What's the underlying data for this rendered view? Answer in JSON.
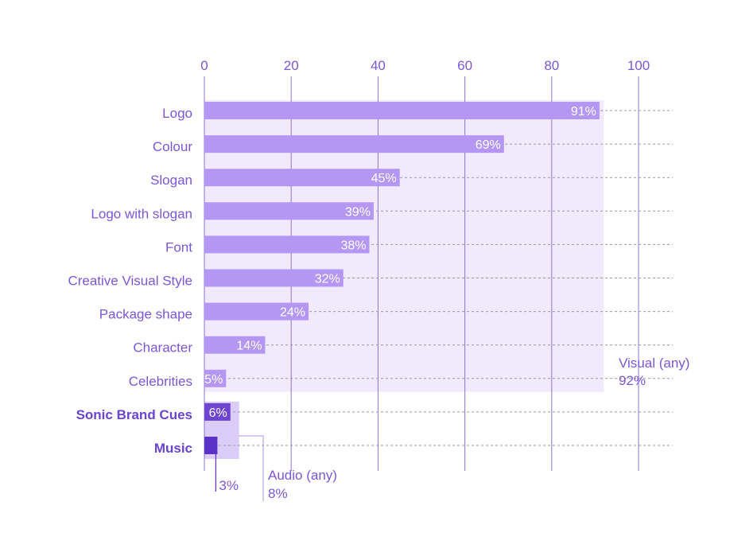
{
  "chart_data": {
    "type": "bar",
    "orientation": "horizontal",
    "title": "",
    "xlabel": "",
    "ylabel": "",
    "xlim": [
      0,
      100
    ],
    "x_ticks": [
      "0",
      "20",
      "40",
      "60",
      "80",
      "100"
    ],
    "categories": [
      "Logo",
      "Colour",
      "Slogan",
      "Logo with slogan",
      "Font",
      "Creative Visual Style",
      "Package shape",
      "Character",
      "Celebrities",
      "Sonic Brand Cues",
      "Music"
    ],
    "values": [
      91,
      69,
      45,
      39,
      38,
      32,
      24,
      14,
      5,
      6,
      3
    ],
    "value_labels": [
      "91%",
      "69%",
      "45%",
      "39%",
      "38%",
      "32%",
      "24%",
      "14%",
      "5%",
      "6%",
      ""
    ],
    "bold_categories": [
      "Sonic Brand Cues",
      "Music"
    ],
    "groups": [
      {
        "name": "Visual (any)",
        "value": 92,
        "value_label": "92%",
        "categories": [
          "Logo",
          "Colour",
          "Slogan",
          "Logo with slogan",
          "Font",
          "Creative Visual Style",
          "Package shape",
          "Character",
          "Celebrities"
        ]
      },
      {
        "name": "Audio (any)",
        "value": 8,
        "value_label": "8%",
        "categories": [
          "Sonic Brand Cues",
          "Music"
        ]
      }
    ],
    "callouts": [
      {
        "category": "Music",
        "label": "3%"
      }
    ],
    "grid": true,
    "legend": "none",
    "colors": {
      "bar": "#b397f2",
      "bar_dark": "#6d45d1",
      "bar_darker": "#5b32c7",
      "visual_band": "#f1eafc",
      "audio_band": "#dccdf8",
      "gridline": "#8e74cf",
      "text": "#7b56d6"
    }
  }
}
